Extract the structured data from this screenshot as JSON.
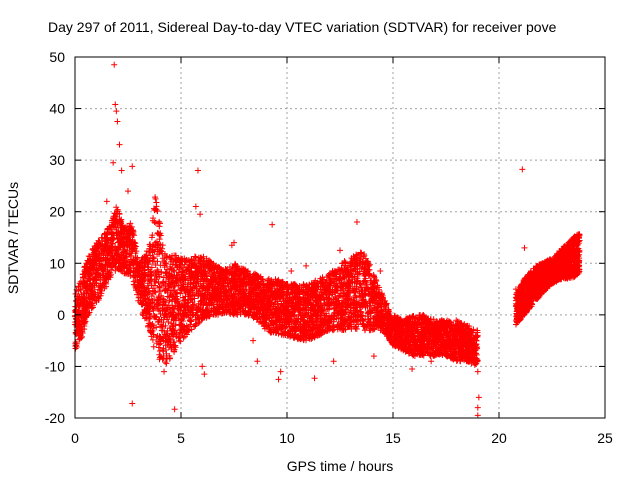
{
  "chart_data": {
    "type": "scatter",
    "title": "Day 297 of 2011, Sidereal Day-to-day VTEC variation (SDTVAR) for receiver pove",
    "xlabel": "GPS time / hours",
    "ylabel": "SDTVAR / TECUs",
    "xlim": [
      0,
      25
    ],
    "ylim": [
      -20,
      50
    ],
    "xticks": [
      "0",
      "5",
      "10",
      "15",
      "20",
      "25"
    ],
    "yticks": [
      "-20",
      "-10",
      "0",
      "10",
      "20",
      "30",
      "40",
      "50"
    ],
    "grid": true,
    "marker": "+",
    "color": "#ff0000",
    "series": [
      {
        "name": "SDTVAR",
        "envelope": {
          "x": [
            0.0,
            0.3,
            0.6,
            1.0,
            1.4,
            1.8,
            2.0,
            2.3,
            2.7,
            3.0,
            3.5,
            3.8,
            4.2,
            4.6,
            5.0,
            5.5,
            6.0,
            6.5,
            7.0,
            7.5,
            8.0,
            8.5,
            9.0,
            9.5,
            10.0,
            10.5,
            11.0,
            11.5,
            12.0,
            12.5,
            13.0,
            13.5,
            14.0,
            14.5,
            15.0,
            15.5,
            16.0,
            16.5,
            17.0,
            17.5,
            18.0,
            18.5,
            19.0
          ],
          "upper": [
            4,
            8,
            11,
            14,
            16,
            19,
            22,
            17,
            18,
            10,
            13,
            24,
            12,
            12,
            11,
            11,
            12,
            10,
            9,
            10,
            9,
            8,
            7,
            7,
            6,
            6,
            6,
            7,
            8,
            10,
            11,
            13,
            9,
            4,
            0,
            -1,
            0,
            0,
            -1,
            -1,
            -1,
            -2,
            -3
          ],
          "lower": [
            -7,
            -5,
            0,
            2,
            5,
            8,
            9,
            8,
            7,
            2,
            -3,
            -8,
            -10,
            -8,
            -5,
            -3,
            -1,
            0,
            0,
            0,
            0,
            -1,
            -3,
            -4,
            -4,
            -5,
            -5,
            -4,
            -3,
            -3,
            -3,
            -3,
            -3,
            -3,
            -6,
            -7,
            -8,
            -8,
            -8,
            -8,
            -9,
            -9,
            -10
          ]
        },
        "envelope2": {
          "x": [
            20.8,
            21.2,
            21.6,
            22.0,
            22.5,
            23.0,
            23.5,
            23.8
          ],
          "upper": [
            4,
            7,
            9,
            10,
            11,
            13,
            15,
            16
          ],
          "lower": [
            -2,
            0,
            2,
            4,
            6,
            7,
            7,
            8
          ]
        },
        "outliers": [
          {
            "x": 1.85,
            "y": 48.5
          },
          {
            "x": 1.9,
            "y": 40.8
          },
          {
            "x": 1.95,
            "y": 39.5
          },
          {
            "x": 2.0,
            "y": 37.5
          },
          {
            "x": 1.8,
            "y": 29.5
          },
          {
            "x": 2.1,
            "y": 33
          },
          {
            "x": 2.2,
            "y": 28
          },
          {
            "x": 2.7,
            "y": 28.8
          },
          {
            "x": 1.5,
            "y": 22
          },
          {
            "x": 2.5,
            "y": 24
          },
          {
            "x": 2.7,
            "y": -17.2
          },
          {
            "x": 4.7,
            "y": -18.3
          },
          {
            "x": 3.8,
            "y": 22.5
          },
          {
            "x": 5.8,
            "y": 28
          },
          {
            "x": 5.7,
            "y": 21
          },
          {
            "x": 5.9,
            "y": 19.5
          },
          {
            "x": 9.3,
            "y": 17.5
          },
          {
            "x": 13.3,
            "y": 18
          },
          {
            "x": 11.3,
            "y": -12.3
          },
          {
            "x": 9.6,
            "y": -12.5
          },
          {
            "x": 9.7,
            "y": -11
          },
          {
            "x": 6.0,
            "y": -10
          },
          {
            "x": 6.1,
            "y": -11.5
          },
          {
            "x": 7.5,
            "y": 14
          },
          {
            "x": 7.4,
            "y": 13.5
          },
          {
            "x": 12.5,
            "y": 12.5
          },
          {
            "x": 14.4,
            "y": 8.5
          },
          {
            "x": 15.9,
            "y": -10.5
          },
          {
            "x": 17.5,
            "y": -6
          },
          {
            "x": 19.0,
            "y": -18
          },
          {
            "x": 19.0,
            "y": -19.5
          },
          {
            "x": 19.05,
            "y": -16
          },
          {
            "x": 19.0,
            "y": -11
          },
          {
            "x": 21.1,
            "y": 28.2
          },
          {
            "x": 21.2,
            "y": 13
          },
          {
            "x": 20.8,
            "y": 5
          },
          {
            "x": 4.2,
            "y": -11
          },
          {
            "x": 8.6,
            "y": -9
          },
          {
            "x": 10.2,
            "y": 8.5
          },
          {
            "x": 12.2,
            "y": -9
          },
          {
            "x": 16.8,
            "y": -9
          },
          {
            "x": 14.1,
            "y": -8
          },
          {
            "x": 10.9,
            "y": 9.5
          },
          {
            "x": 8.4,
            "y": -5
          }
        ]
      }
    ]
  }
}
